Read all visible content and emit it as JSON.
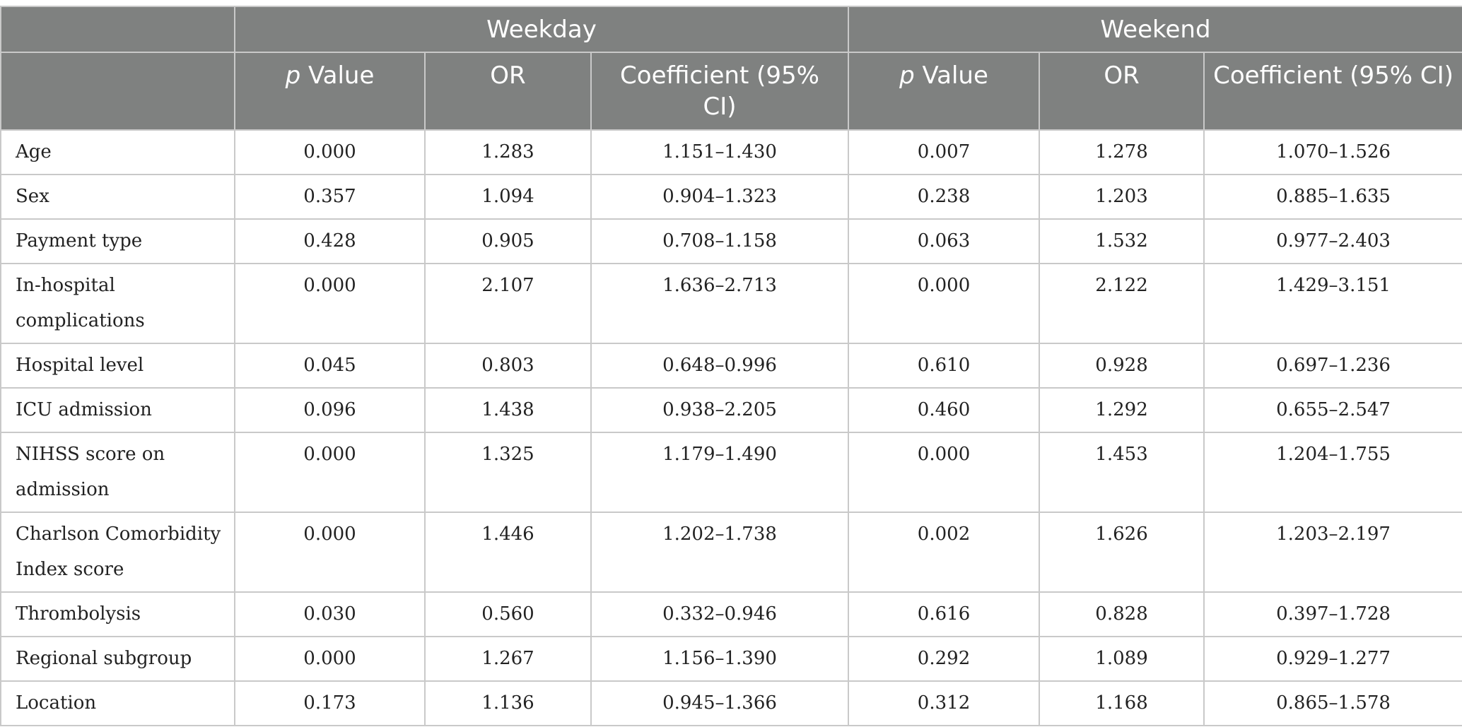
{
  "table": {
    "group_headers": {
      "weekday": "Weekday",
      "weekend": "Weekend"
    },
    "sub_headers": {
      "p_italic": "p",
      "p_rest": " Value",
      "or": "OR",
      "coef": "Coefficient (95% CI)"
    },
    "rows": [
      {
        "label": "Age",
        "wd_p": "0.000",
        "wd_or": "1.283",
        "wd_ci": "1.151–1.430",
        "we_p": "0.007",
        "we_or": "1.278",
        "we_ci": "1.070–1.526"
      },
      {
        "label": "Sex",
        "wd_p": "0.357",
        "wd_or": "1.094",
        "wd_ci": "0.904–1.323",
        "we_p": "0.238",
        "we_or": "1.203",
        "we_ci": "0.885–1.635"
      },
      {
        "label": "Payment type",
        "wd_p": "0.428",
        "wd_or": "0.905",
        "wd_ci": "0.708–1.158",
        "we_p": "0.063",
        "we_or": "1.532",
        "we_ci": "0.977–2.403"
      },
      {
        "label": "In-hospital complications",
        "wd_p": "0.000",
        "wd_or": "2.107",
        "wd_ci": "1.636–2.713",
        "we_p": "0.000",
        "we_or": "2.122",
        "we_ci": "1.429–3.151"
      },
      {
        "label": "Hospital level",
        "wd_p": "0.045",
        "wd_or": "0.803",
        "wd_ci": "0.648–0.996",
        "we_p": "0.610",
        "we_or": "0.928",
        "we_ci": "0.697–1.236"
      },
      {
        "label": "ICU admission",
        "wd_p": "0.096",
        "wd_or": "1.438",
        "wd_ci": "0.938–2.205",
        "we_p": "0.460",
        "we_or": "1.292",
        "we_ci": "0.655–2.547"
      },
      {
        "label": "NIHSS score on admission",
        "wd_p": "0.000",
        "wd_or": "1.325",
        "wd_ci": "1.179–1.490",
        "we_p": "0.000",
        "we_or": "1.453",
        "we_ci": "1.204–1.755"
      },
      {
        "label": "Charlson Comorbidity Index score",
        "wd_p": "0.000",
        "wd_or": "1.446",
        "wd_ci": "1.202–1.738",
        "we_p": "0.002",
        "we_or": "1.626",
        "we_ci": "1.203–2.197"
      },
      {
        "label": "Thrombolysis",
        "wd_p": "0.030",
        "wd_or": "0.560",
        "wd_ci": "0.332–0.946",
        "we_p": "0.616",
        "we_or": "0.828",
        "we_ci": "0.397–1.728"
      },
      {
        "label": "Regional subgroup",
        "wd_p": "0.000",
        "wd_or": "1.267",
        "wd_ci": "1.156–1.390",
        "we_p": "0.292",
        "we_or": "1.089",
        "we_ci": "0.929–1.277"
      },
      {
        "label": "Location",
        "wd_p": "0.173",
        "wd_or": "1.136",
        "wd_ci": "0.945–1.366",
        "we_p": "0.312",
        "we_or": "1.168",
        "we_ci": "0.865–1.578"
      }
    ]
  }
}
